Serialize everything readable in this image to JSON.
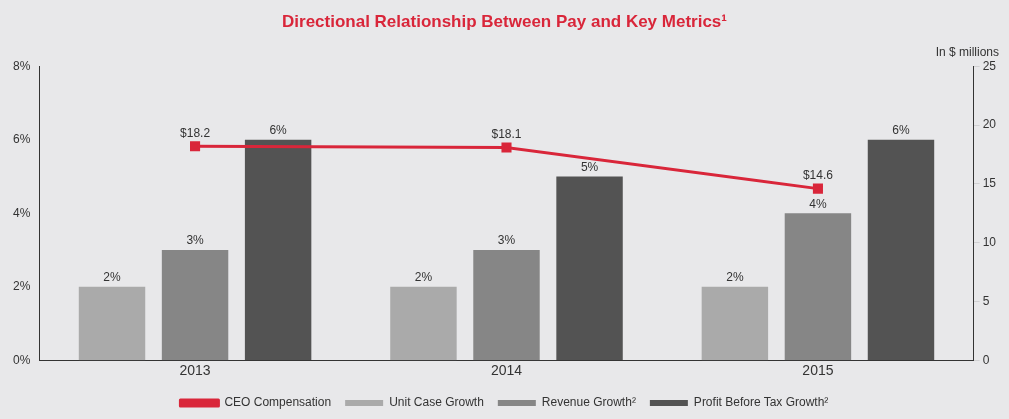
{
  "chart_data": {
    "type": "bar",
    "title": "Directional Relationship Between Pay and Key Metrics¹",
    "categories": [
      "2013",
      "2014",
      "2015"
    ],
    "series": [
      {
        "name": "Unit Case Growth",
        "color": "#aaaaaa",
        "values": [
          2,
          2,
          2
        ],
        "value_labels": [
          "2%",
          "2%",
          "2%"
        ]
      },
      {
        "name": "Revenue Growth²",
        "color": "#868686",
        "values": [
          3,
          3,
          4
        ],
        "value_labels": [
          "3%",
          "3%",
          "4%"
        ]
      },
      {
        "name": "Profit Before Tax Growth²",
        "color": "#535353",
        "values": [
          6,
          5,
          6
        ],
        "value_labels": [
          "6%",
          "5%",
          "6%"
        ]
      },
      {
        "name": "CEO Compensation",
        "type": "line",
        "axis": "y2",
        "color": "#d9263a",
        "marker": "square",
        "values": [
          18.2,
          18.1,
          14.6
        ],
        "value_labels": [
          "$18.2",
          "$18.1",
          "$14.6"
        ]
      }
    ],
    "ylim": [
      0,
      8
    ],
    "yticks": [
      {
        "value": 0,
        "label": "0%"
      },
      {
        "value": 2,
        "label": "2%"
      },
      {
        "value": 4,
        "label": "4%"
      },
      {
        "value": 6,
        "label": "6%"
      },
      {
        "value": 8,
        "label": "8%"
      }
    ],
    "y2lim": [
      0,
      25
    ],
    "y2ticks": [
      0,
      5,
      10,
      15,
      20,
      25
    ],
    "y2label": "In $ millions",
    "grid": false,
    "legend": "bottom"
  }
}
